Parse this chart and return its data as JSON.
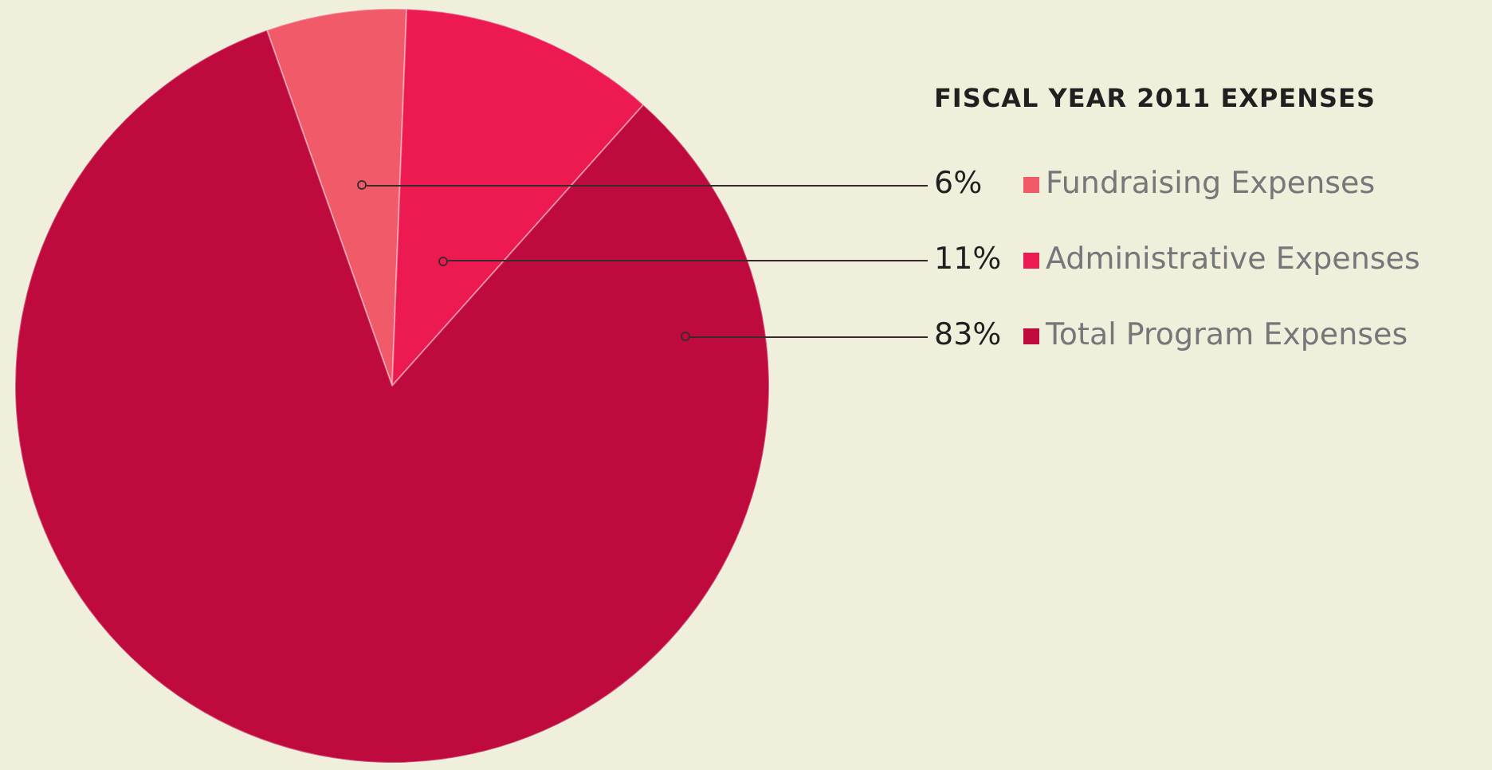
{
  "chart_data": {
    "type": "pie",
    "title": "FISCAL YEAR 2011 EXPENSES",
    "categories": [
      "Fundraising Expenses",
      "Administrative Expenses",
      "Total Program Expenses"
    ],
    "values": [
      6,
      11,
      83
    ],
    "value_labels": [
      "6%",
      "11%",
      "83%"
    ],
    "colors": [
      "#f05a69",
      "#ec1a50",
      "#bf0a3d"
    ],
    "legend": "right"
  }
}
